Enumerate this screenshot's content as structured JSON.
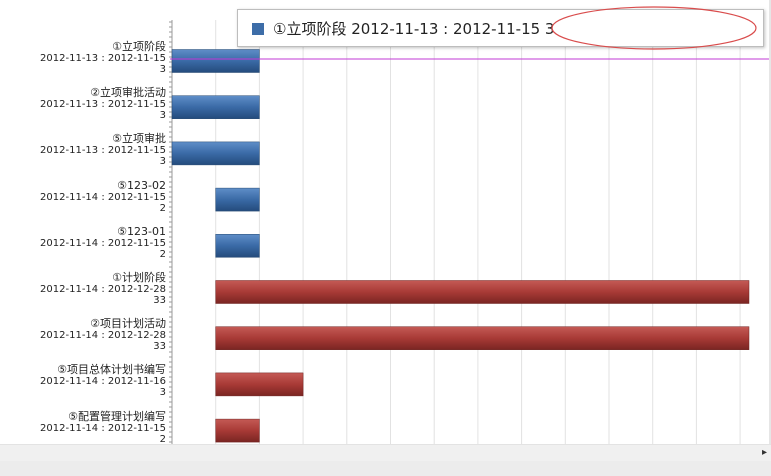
{
  "chart_data": {
    "type": "bar",
    "orientation": "horizontal-gantt",
    "categories": [
      {
        "name": "①立项阶段",
        "range": "2012-11-13 : 2012-11-15",
        "days": "3",
        "start_day": 0,
        "duration": 2,
        "color": "blue"
      },
      {
        "name": "②立项审批活动",
        "range": "2012-11-13 : 2012-11-15",
        "days": "3",
        "start_day": 0,
        "duration": 2,
        "color": "blue"
      },
      {
        "name": "⑤立项审批",
        "range": "2012-11-13 : 2012-11-15",
        "days": "3",
        "start_day": 0,
        "duration": 2,
        "color": "blue"
      },
      {
        "name": "⑤123-02",
        "range": "2012-11-14 : 2012-11-15",
        "days": "2",
        "start_day": 1,
        "duration": 1,
        "color": "blue"
      },
      {
        "name": "⑤123-01",
        "range": "2012-11-14 : 2012-11-15",
        "days": "2",
        "start_day": 1,
        "duration": 1,
        "color": "blue"
      },
      {
        "name": "①计划阶段",
        "range": "2012-11-14 : 2012-12-28",
        "days": "33",
        "start_day": 1,
        "duration": 44,
        "color": "red"
      },
      {
        "name": "②项目计划活动",
        "range": "2012-11-14 : 2012-12-28",
        "days": "33",
        "start_day": 1,
        "duration": 44,
        "color": "red"
      },
      {
        "name": "⑤项目总体计划书编写",
        "range": "2012-11-14 : 2012-11-16",
        "days": "3",
        "start_day": 1,
        "duration": 2,
        "color": "red"
      },
      {
        "name": "⑤配置管理计划编写",
        "range": "2012-11-14 : 2012-11-15",
        "days": "2",
        "start_day": 1,
        "duration": 1,
        "color": "red"
      }
    ],
    "colors": {
      "blue": "#3a6aa6",
      "red": "#a83a36"
    },
    "grid": true,
    "x_start": "2012-11-13"
  },
  "tooltip": {
    "text": "①立项阶段 2012-11-13 : 2012-11-15 3",
    "highlight": ": 2012-11-13 : 2012-11-15"
  },
  "scrollbar": {
    "arrow": "▸"
  }
}
